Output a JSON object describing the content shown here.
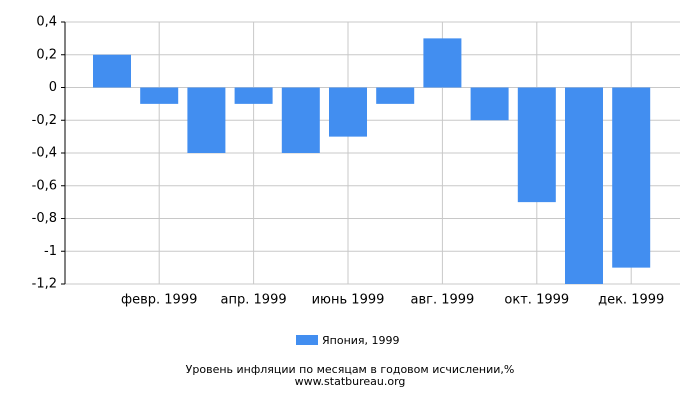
{
  "chart_data": {
    "type": "bar",
    "title": "Уровень инфляции по месяцам в годовом исчислении,%",
    "subtitle": "www.statbureau.org",
    "categories": [
      null,
      "февр. 1999",
      null,
      "апр. 1999",
      null,
      "июнь 1999",
      null,
      "авг. 1999",
      null,
      "окт. 1999",
      null,
      "дек. 1999"
    ],
    "series": [
      {
        "name": "Япония, 1999",
        "color": "#428ef0",
        "values": [
          0.2,
          -0.1,
          -0.4,
          -0.1,
          -0.4,
          -0.3,
          -0.1,
          0.3,
          -0.2,
          -0.7,
          -1.2,
          -1.1
        ]
      }
    ],
    "ylim": [
      -1.2,
      0.4
    ],
    "yticks": [
      {
        "value": -1.2,
        "label": "-1,2"
      },
      -1,
      {
        "value": -0.8,
        "label": "-0,8"
      },
      {
        "value": -0.6,
        "label": "-0,6"
      },
      {
        "value": -0.4,
        "label": "-0,4"
      },
      {
        "value": -0.2,
        "label": "-0,2"
      },
      0,
      {
        "value": 0.2,
        "label": "0,2"
      },
      {
        "value": 0.4,
        "label": "0,4"
      }
    ],
    "grid": true
  }
}
